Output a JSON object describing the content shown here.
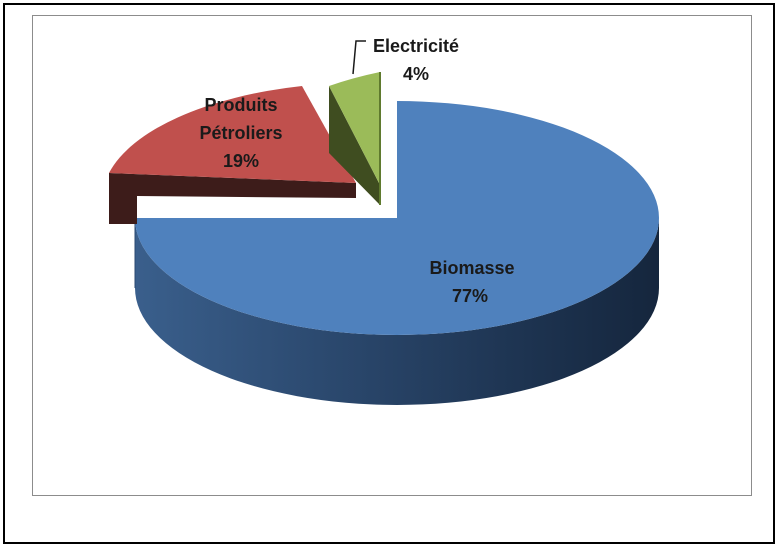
{
  "chart_data": {
    "type": "pie",
    "style": "3d-exploded",
    "slices": [
      {
        "label": "Biomasse",
        "percent_text": "77%",
        "value": 77,
        "color": "#4f81bd"
      },
      {
        "label": "Produits Pétroliers",
        "label_lines": [
          "Produits",
          "Pétroliers"
        ],
        "percent_text": "19%",
        "value": 19,
        "color": "#c0504d"
      },
      {
        "label": "Electricité",
        "percent_text": "4%",
        "value": 4,
        "color": "#9bbb59"
      }
    ],
    "legend": "none",
    "title": ""
  }
}
